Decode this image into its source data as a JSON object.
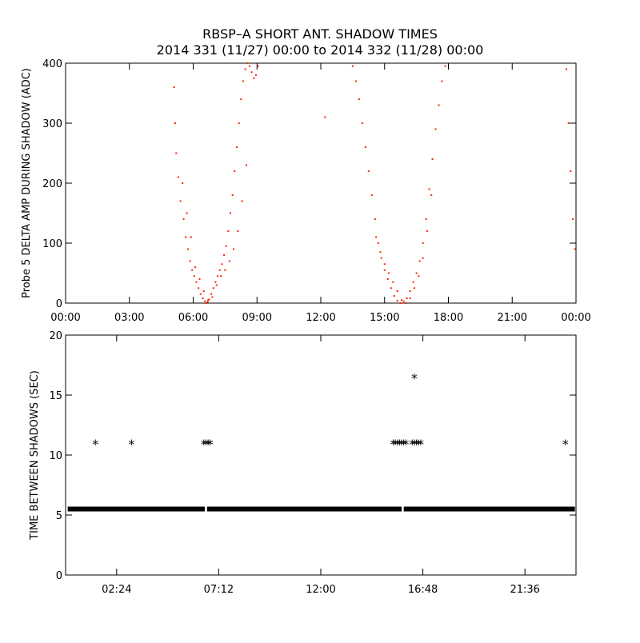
{
  "figure": {
    "title_line1": "RBSP–A SHORT ANT. SHADOW TIMES",
    "title_line2": "2014 331 (11/27) 00:00 to 2014 332 (11/28) 00:00"
  },
  "chart_data": [
    {
      "type": "scatter",
      "title": "",
      "xlabel": "",
      "ylabel": "Probe 5 DELTA AMP DURING SHADOW (ADC)",
      "x_unit": "hours since 2014-11-27 00:00",
      "xlim": [
        0,
        24
      ],
      "ylim": [
        0,
        400
      ],
      "x_ticks": [
        0,
        3,
        6,
        9,
        12,
        15,
        18,
        21,
        24
      ],
      "x_tick_labels": [
        "00:00",
        "03:00",
        "06:00",
        "09:00",
        "12:00",
        "15:00",
        "18:00",
        "21:00",
        "00:00"
      ],
      "y_ticks": [
        0,
        100,
        200,
        300,
        400
      ],
      "y_tick_labels": [
        "0",
        "100",
        "200",
        "300",
        "400"
      ],
      "marker_color": "#ff2200",
      "series": [
        {
          "x": [
            5.1,
            5.15,
            5.2,
            5.3,
            5.4,
            5.55,
            5.65,
            5.75,
            5.85,
            5.95,
            6.05,
            6.15,
            6.25,
            6.35,
            6.45,
            6.55,
            6.62,
            6.68,
            6.75,
            6.85,
            6.95,
            7.05,
            7.15,
            7.25,
            7.35,
            7.45,
            7.55,
            7.65,
            7.75,
            7.85,
            7.95,
            8.05,
            8.15,
            8.25,
            8.35,
            8.45,
            8.55,
            8.65,
            8.75,
            8.85,
            8.95,
            9.05,
            12.2,
            13.5,
            13.65,
            13.8,
            13.95,
            14.1,
            14.25,
            14.4,
            14.55,
            14.7,
            14.85,
            15.0,
            15.15,
            15.3,
            15.45,
            15.6,
            15.75,
            15.9,
            16.05,
            16.2,
            16.35,
            16.5,
            16.65,
            16.8,
            16.95,
            17.1,
            17.25,
            17.4,
            17.55,
            17.7,
            17.85,
            23.55,
            23.65,
            23.75,
            23.85,
            23.95
          ],
          "y": [
            360,
            300,
            250,
            210,
            170,
            140,
            110,
            90,
            70,
            55,
            45,
            35,
            25,
            15,
            8,
            3,
            0,
            2,
            6,
            15,
            25,
            35,
            45,
            55,
            65,
            80,
            95,
            120,
            150,
            180,
            220,
            260,
            300,
            340,
            370,
            390,
            400,
            395,
            385,
            375,
            380,
            395,
            310,
            395,
            370,
            340,
            300,
            260,
            220,
            180,
            140,
            100,
            75,
            55,
            40,
            25,
            12,
            4,
            0,
            3,
            8,
            20,
            35,
            50,
            70,
            100,
            140,
            190,
            240,
            290,
            330,
            370,
            395,
            390,
            300,
            220,
            140,
            90
          ]
        },
        {
          "x": [
            5.5,
            5.7,
            5.9,
            6.1,
            6.3,
            6.5,
            6.7,
            6.9,
            7.1,
            7.3,
            7.5,
            7.7,
            7.9,
            8.1,
            8.3,
            8.5,
            14.6,
            14.8,
            15.0,
            15.2,
            15.4,
            15.6,
            15.8,
            16.0,
            16.2,
            16.4,
            16.6,
            16.8,
            17.0,
            17.2
          ],
          "y": [
            200,
            150,
            110,
            60,
            40,
            20,
            5,
            10,
            30,
            45,
            55,
            70,
            90,
            120,
            170,
            230,
            110,
            85,
            65,
            50,
            35,
            20,
            5,
            0,
            8,
            25,
            45,
            75,
            120,
            180
          ]
        }
      ]
    },
    {
      "type": "scatter",
      "title": "",
      "xlabel": "",
      "ylabel": "TIME BETWEEN SHADOWS (SEC)",
      "x_unit": "hours since 2014-11-27 00:00",
      "xlim": [
        0,
        24
      ],
      "ylim": [
        0,
        20
      ],
      "x_ticks": [
        2.4,
        7.2,
        12.0,
        16.8,
        21.6
      ],
      "x_tick_labels": [
        "02:24",
        "07:12",
        "12:00",
        "16:48",
        "21:36"
      ],
      "y_ticks": [
        0,
        5,
        10,
        15,
        20
      ],
      "y_tick_labels": [
        "0",
        "5",
        "10",
        "15",
        "20"
      ],
      "marker": "asterisk",
      "marker_color": "#000000",
      "baseline": {
        "y": 5.5,
        "x_start": 0.1,
        "x_end": 23.95,
        "gaps": [
          6.6,
          15.85
        ]
      },
      "series": [
        {
          "x": [
            1.4,
            3.1,
            6.5,
            6.6,
            6.7,
            6.8,
            15.4,
            15.5,
            15.6,
            15.7,
            15.8,
            15.9,
            16.0,
            16.3,
            16.4,
            16.5,
            16.6,
            16.7,
            16.4,
            23.5
          ],
          "y": [
            11,
            11,
            11,
            11,
            11,
            11,
            11,
            11,
            11,
            11,
            11,
            11,
            11,
            11,
            11,
            11,
            11,
            11,
            16.5,
            11
          ]
        }
      ]
    }
  ]
}
